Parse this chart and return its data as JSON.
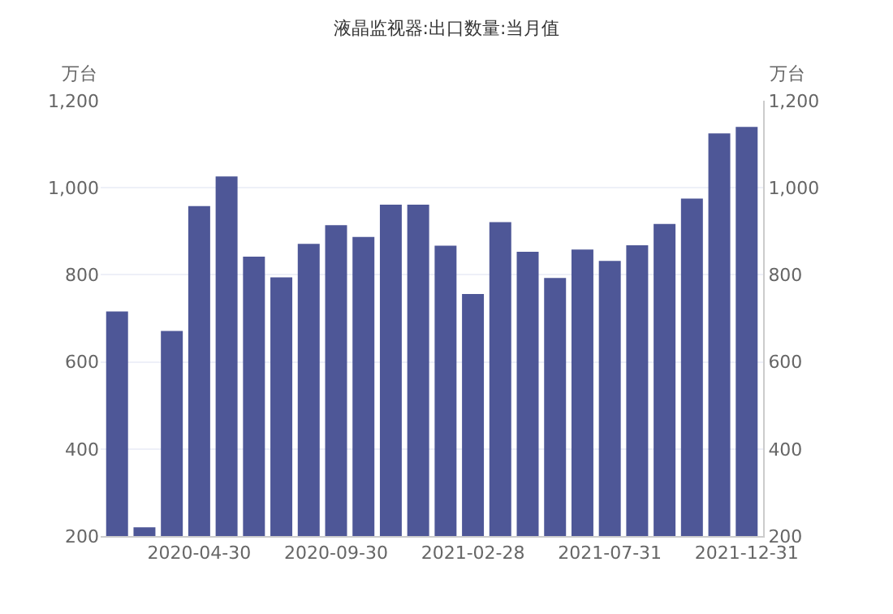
{
  "chart_data": {
    "type": "bar",
    "title": "液晶监视器:出口数量:当月值",
    "ylabel": "万台",
    "y2label": "万台",
    "categories": [
      null,
      null,
      null,
      "2020-04-30",
      null,
      null,
      null,
      null,
      "2020-09-30",
      null,
      null,
      null,
      null,
      "2021-02-28",
      null,
      null,
      null,
      null,
      "2021-07-31",
      null,
      null,
      null,
      null,
      "2021-12-31"
    ],
    "series": [
      {
        "color": "#4e5797",
        "values": [
          716,
          220,
          671,
          958,
          1026,
          842,
          794,
          871,
          914,
          887,
          961,
          961,
          867,
          756,
          921,
          853,
          793,
          858,
          832,
          868,
          917,
          975,
          1125,
          1140
        ]
      }
    ],
    "ylim": [
      200,
      1200
    ],
    "yticks": [
      200,
      400,
      600,
      800,
      {
        "value": 1000,
        "label": "1,000"
      },
      {
        "value": 1200,
        "label": "1,200"
      }
    ],
    "y2lim": [
      200,
      1200
    ],
    "y2ticks": [
      200,
      400,
      600,
      800,
      {
        "value": 1000,
        "label": "1,000"
      },
      {
        "value": 1200,
        "label": "1,200"
      }
    ],
    "grid": "y"
  }
}
